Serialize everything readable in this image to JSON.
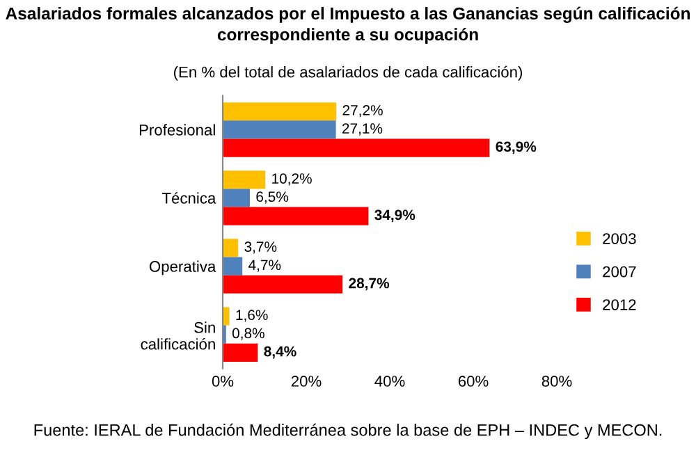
{
  "chart_data": {
    "type": "bar",
    "orientation": "horizontal",
    "title": "Asalariados formales alcanzados por el Impuesto a las Ganancias según calificación\ncorrespondiente a su ocupación",
    "subtitle": "(En % del total de asalariados de cada calificación)",
    "categories": [
      "Profesional",
      "Técnica",
      "Operativa",
      "Sin\ncalificación"
    ],
    "series": [
      {
        "name": "2003",
        "color": "#ffc000",
        "values": [
          27.2,
          10.2,
          3.7,
          1.6
        ],
        "value_labels": [
          "27,2%",
          "10,2%",
          "3,7%",
          "1,6%"
        ]
      },
      {
        "name": "2007",
        "color": "#4f81bd",
        "values": [
          27.1,
          6.5,
          4.7,
          0.8
        ],
        "value_labels": [
          "27,1%",
          "6,5%",
          "4,7%",
          "0,8%"
        ]
      },
      {
        "name": "2012",
        "color": "#ff0000",
        "values": [
          63.9,
          34.9,
          28.7,
          8.4
        ],
        "value_labels": [
          "63,9%",
          "34,9%",
          "28,7%",
          "8,4%"
        ]
      }
    ],
    "xlim": [
      0,
      80
    ],
    "xticks": [
      {
        "value": 0,
        "label": "0%"
      },
      {
        "value": 20,
        "label": "20%"
      },
      {
        "value": 40,
        "label": "40%"
      },
      {
        "value": 60,
        "label": "60%"
      },
      {
        "value": 80,
        "label": "80%"
      }
    ],
    "grid": false,
    "legend": "right",
    "annotations": [
      "Fuente: IERAL de Fundación Mediterránea sobre la base de EPH – INDEC y MECON."
    ]
  }
}
